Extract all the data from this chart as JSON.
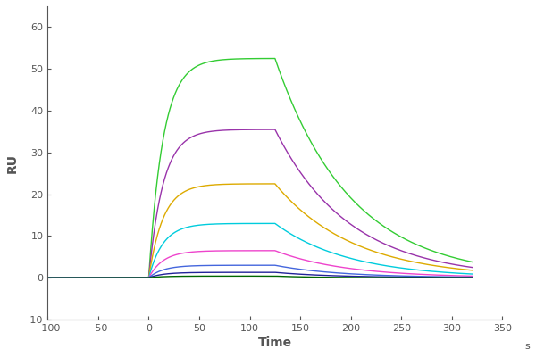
{
  "xlabel": "Time",
  "xlabel_s": "s",
  "ylabel": "RU",
  "xlim": [
    -100,
    350
  ],
  "ylim": [
    -10,
    65
  ],
  "xticks": [
    -100,
    -50,
    0,
    50,
    100,
    150,
    200,
    250,
    300,
    350
  ],
  "yticks": [
    -10,
    0,
    10,
    20,
    30,
    40,
    50,
    60
  ],
  "association_start": 0,
  "association_end": 125,
  "dissociation_end": 320,
  "curves": [
    {
      "color": "#33cc33",
      "max_ru": 52.5,
      "dissoc_end_ru": 3.8,
      "ka": 0.07,
      "kd": 0.008
    },
    {
      "color": "#9933aa",
      "max_ru": 35.5,
      "dissoc_end_ru": 2.5,
      "ka": 0.07,
      "kd": 0.008
    },
    {
      "color": "#ddaa00",
      "max_ru": 22.5,
      "dissoc_end_ru": 1.8,
      "ka": 0.07,
      "kd": 0.008
    },
    {
      "color": "#00ccdd",
      "max_ru": 13.0,
      "dissoc_end_ru": 0.9,
      "ka": 0.07,
      "kd": 0.008
    },
    {
      "color": "#ee44cc",
      "max_ru": 6.5,
      "dissoc_end_ru": 0.4,
      "ka": 0.07,
      "kd": 0.008
    },
    {
      "color": "#4466dd",
      "max_ru": 3.0,
      "dissoc_end_ru": 0.15,
      "ka": 0.07,
      "kd": 0.008
    },
    {
      "color": "#222299",
      "max_ru": 1.3,
      "dissoc_end_ru": 0.05,
      "ka": 0.07,
      "kd": 0.008
    },
    {
      "color": "#006600",
      "max_ru": 0.4,
      "dissoc_end_ru": 0.0,
      "ka": 0.07,
      "kd": 0.008
    }
  ],
  "axis_color": "#555555",
  "tick_color": "#555555",
  "label_color": "#555555",
  "line_width": 1.0,
  "figsize": [
    6.0,
    4.0
  ],
  "dpi": 100
}
